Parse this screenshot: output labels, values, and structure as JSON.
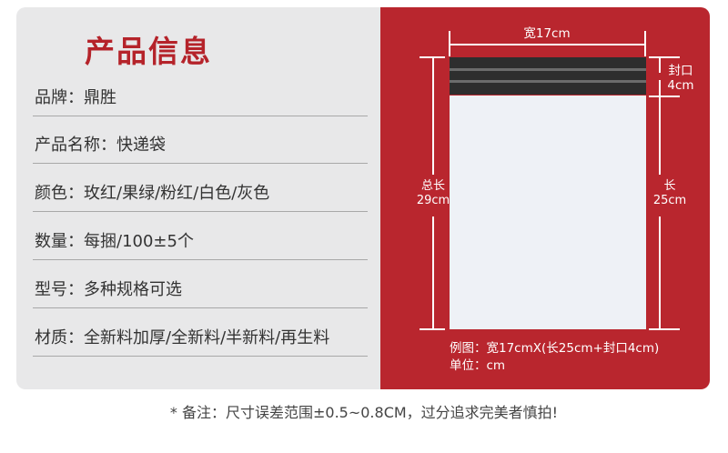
{
  "title": "产品信息",
  "specs": [
    "品牌：鼎胜",
    "产品名称：快递袋",
    "颜色：玫红/果绿/粉红/白色/灰色",
    "数量：每捆/100±5个",
    "型号：多种规格可选",
    "材质：全新料加厚/全新料/半新料/再生料"
  ],
  "diagram": {
    "width": "宽17cm",
    "seal": [
      "封口",
      "4cm"
    ],
    "total": [
      "总长",
      "29cm"
    ],
    "length": [
      "长",
      "25cm"
    ],
    "example": "例图：宽17cmX(长25cm+封口4cm)",
    "unit": "单位：cm"
  },
  "note": "* 备注：尺寸误差范围±0.5~0.8CM，过分追求完美者慎拍!",
  "colors": {
    "accent": "#b9262e",
    "panel": "#e8e8e9"
  }
}
